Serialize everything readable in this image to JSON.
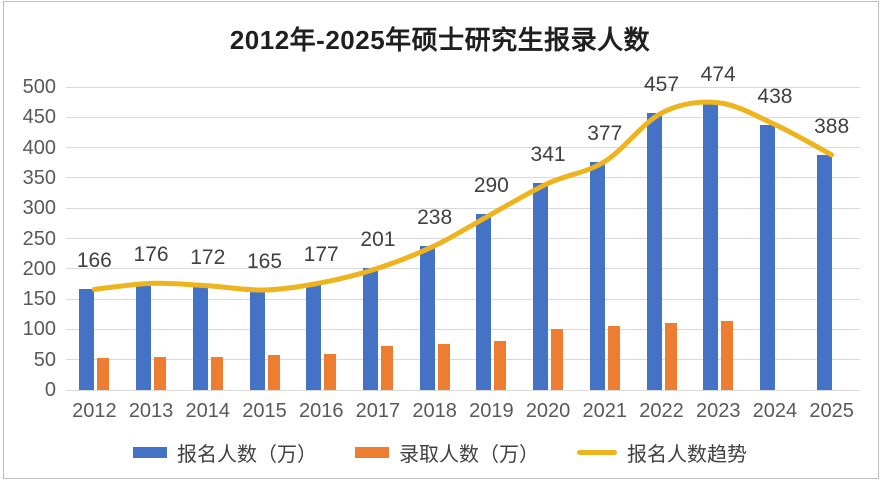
{
  "frame": {
    "background": "#ffffff",
    "border_color": "#bfbfbf"
  },
  "chart_data": {
    "type": "bar",
    "title": "2012年-2025年硕士研究生报录人数",
    "categories": [
      "2012",
      "2013",
      "2014",
      "2015",
      "2016",
      "2017",
      "2018",
      "2019",
      "2020",
      "2021",
      "2022",
      "2023",
      "2024",
      "2025"
    ],
    "series": [
      {
        "name": "报名人数（万）",
        "kind": "bar",
        "color": "#4472C4",
        "values": [
          166,
          176,
          172,
          165,
          177,
          201,
          238,
          290,
          341,
          377,
          457,
          474,
          438,
          388
        ],
        "data_labels": true
      },
      {
        "name": "录取人数（万）",
        "kind": "bar",
        "color": "#ED7D31",
        "values": [
          52,
          54,
          55,
          57,
          59,
          72,
          76,
          81,
          100,
          105,
          110,
          114,
          null,
          null
        ],
        "data_labels": false
      },
      {
        "name": "报名人数趋势",
        "kind": "line",
        "color": "#EDB41E",
        "values": [
          166,
          176,
          172,
          165,
          177,
          201,
          238,
          290,
          341,
          377,
          457,
          474,
          438,
          388
        ],
        "data_labels": false
      }
    ],
    "xlabel": "",
    "ylabel": "",
    "ylim": [
      0,
      500
    ],
    "ytick_step": 50,
    "grid": true,
    "gridline_color": "#d9d9d9",
    "axis_tick_color": "#595959",
    "data_label_color": "#404040",
    "legend_position": "bottom"
  }
}
